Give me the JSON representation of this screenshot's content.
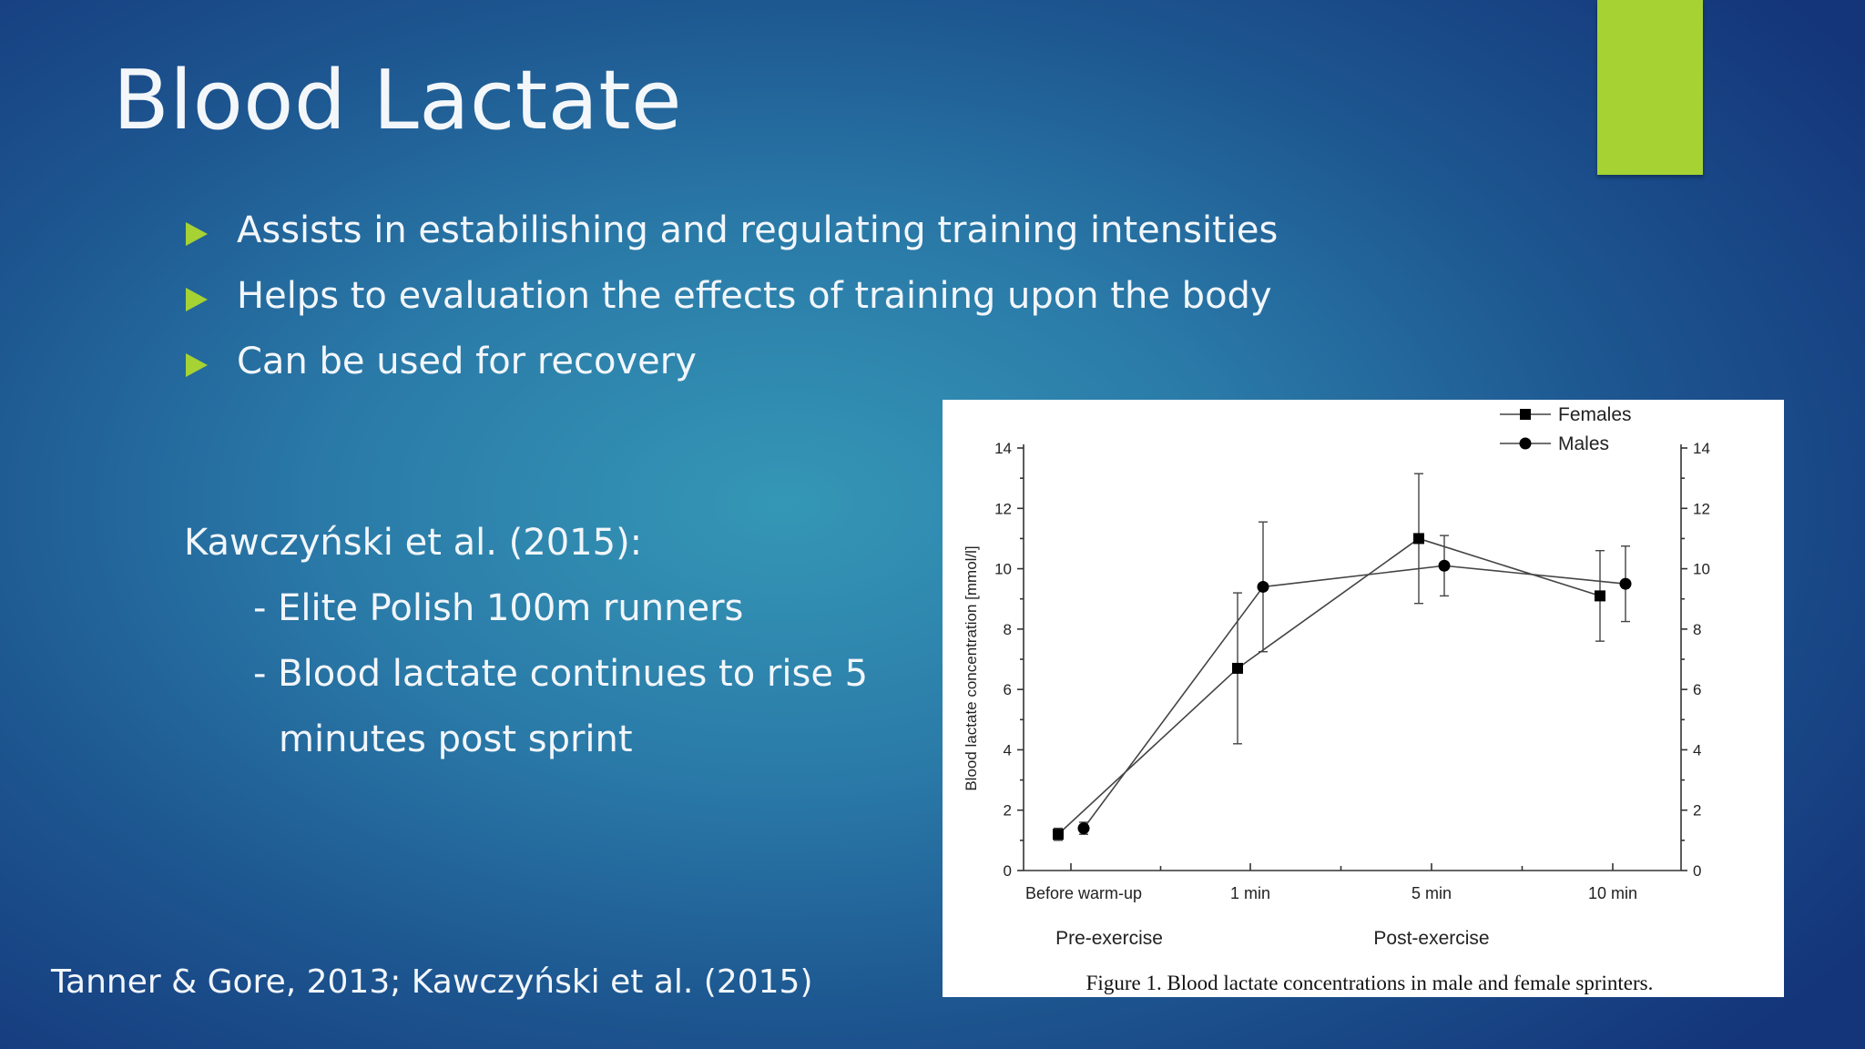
{
  "slide": {
    "title": "Blood Lactate",
    "bullets": [
      "Assists in estabilishing and regulating training intensities",
      "Helps to evaluation the effects of training upon the body",
      "Can be used for recovery"
    ],
    "study": {
      "heading": "Kawczyński et al. (2015):",
      "line1": "- Elite Polish 100m runners",
      "line2": "- Blood lactate continues to rise 5",
      "line3": "minutes post  sprint"
    },
    "footer": "Tanner & Gore, 2013; Kawczyński et al. (2015)",
    "colors": {
      "accent": "#a6d234",
      "background_center": "#3597b6",
      "background_edge": "#14357a"
    }
  },
  "chart_data": {
    "type": "line",
    "caption": "Figure 1. Blood lactate concentrations in male and female sprinters.",
    "ylabel": "Blood lactate concentration [mmol/l]",
    "ylim": [
      0,
      14
    ],
    "yticks": [
      0,
      2,
      4,
      6,
      8,
      10,
      12,
      14
    ],
    "categories": [
      "Before warm-up",
      "1 min",
      "5 min",
      "10 min"
    ],
    "groups": [
      "Pre-exercise",
      "Post-exercise"
    ],
    "legend_position": "top-right",
    "series": [
      {
        "name": "Females",
        "marker": "square",
        "values": [
          1.2,
          6.7,
          11.0,
          9.1
        ],
        "error": [
          0.2,
          2.5,
          2.15,
          1.5
        ]
      },
      {
        "name": "Males",
        "marker": "circle",
        "values": [
          1.4,
          9.4,
          10.1,
          9.5
        ],
        "error": [
          0.2,
          2.15,
          1.0,
          1.25
        ]
      }
    ]
  }
}
